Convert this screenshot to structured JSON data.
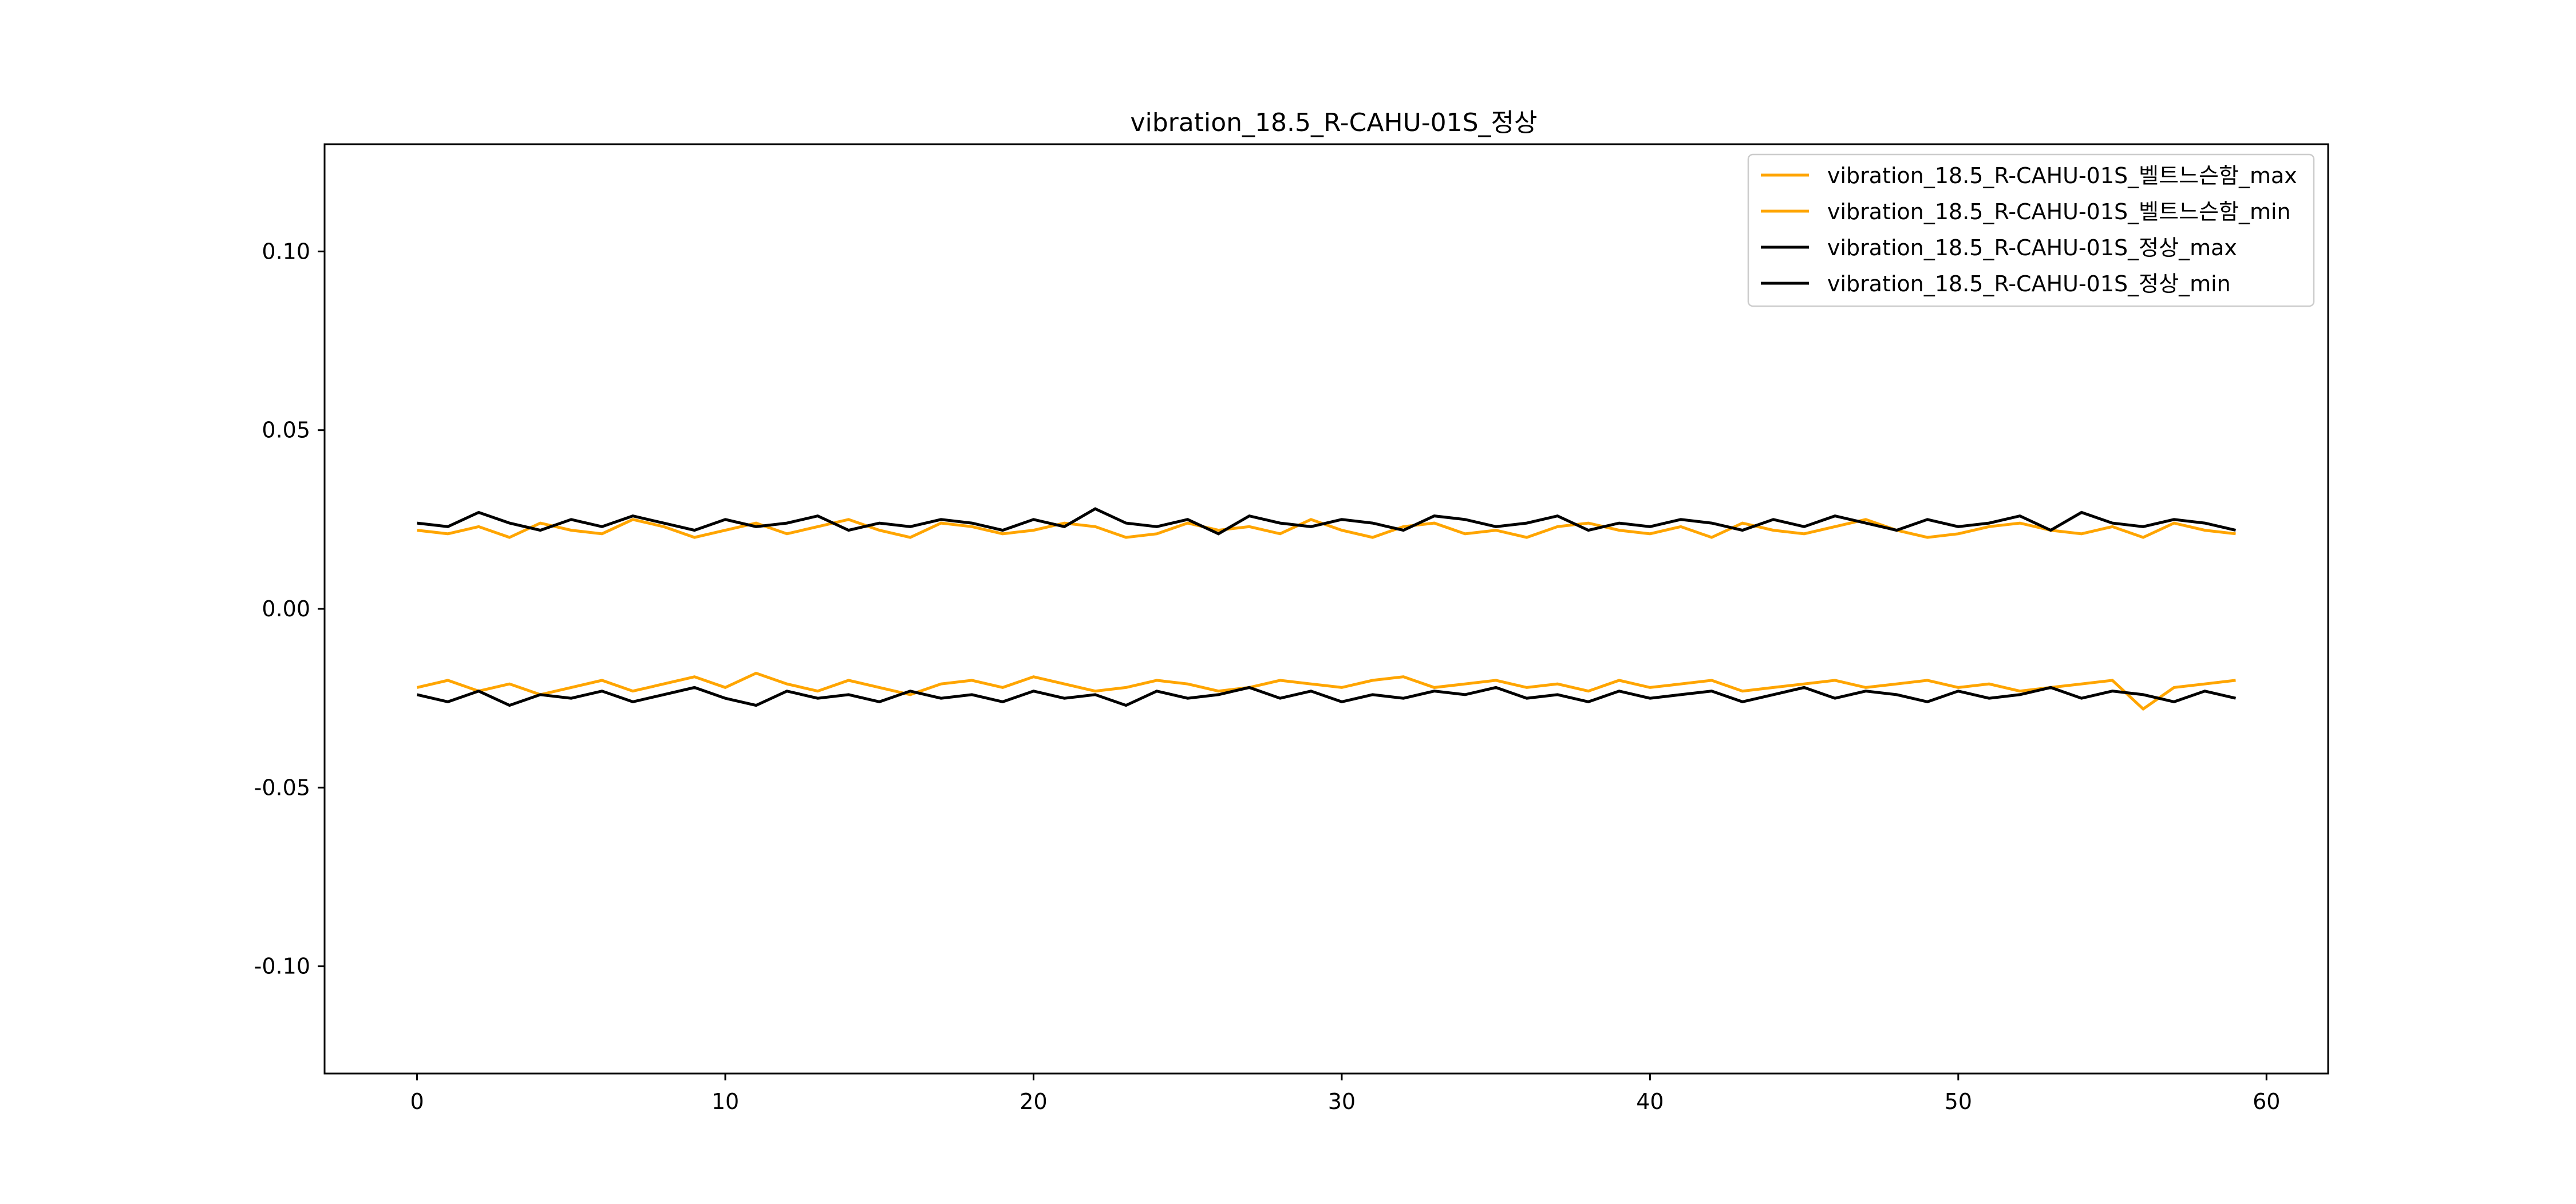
{
  "chart_data": {
    "type": "line",
    "title": "vibration_18.5_R-CAHU-01S_정상",
    "xlabel": "",
    "ylabel": "",
    "xlim": [
      -3,
      62
    ],
    "ylim": [
      -0.13,
      0.13
    ],
    "x_ticks": [
      0,
      10,
      20,
      30,
      40,
      50,
      60
    ],
    "x_tick_labels": [
      "0",
      "10",
      "20",
      "30",
      "40",
      "50",
      "60"
    ],
    "y_ticks": [
      0.1,
      0.05,
      0.0,
      -0.05,
      -0.1
    ],
    "y_tick_labels": [
      "0.10",
      "0.05",
      "0.00",
      "-0.05",
      "-0.10"
    ],
    "grid": false,
    "legend_position": "top-right",
    "x": [
      0,
      1,
      2,
      3,
      4,
      5,
      6,
      7,
      8,
      9,
      10,
      11,
      12,
      13,
      14,
      15,
      16,
      17,
      18,
      19,
      20,
      21,
      22,
      23,
      24,
      25,
      26,
      27,
      28,
      29,
      30,
      31,
      32,
      33,
      34,
      35,
      36,
      37,
      38,
      39,
      40,
      41,
      42,
      43,
      44,
      45,
      46,
      47,
      48,
      49,
      50,
      51,
      52,
      53,
      54,
      55,
      56,
      57,
      58,
      59
    ],
    "series": [
      {
        "name": "vibration_18.5_R-CAHU-01S_벨트느슨함_max",
        "color": "#ffa500",
        "values": [
          0.022,
          0.021,
          0.023,
          0.02,
          0.024,
          0.022,
          0.021,
          0.025,
          0.023,
          0.02,
          0.022,
          0.024,
          0.021,
          0.023,
          0.025,
          0.022,
          0.02,
          0.024,
          0.023,
          0.021,
          0.022,
          0.024,
          0.023,
          0.02,
          0.021,
          0.024,
          0.022,
          0.023,
          0.021,
          0.025,
          0.022,
          0.02,
          0.023,
          0.024,
          0.021,
          0.022,
          0.02,
          0.023,
          0.024,
          0.022,
          0.021,
          0.023,
          0.02,
          0.024,
          0.022,
          0.021,
          0.023,
          0.025,
          0.022,
          0.02,
          0.021,
          0.023,
          0.024,
          0.022,
          0.021,
          0.023,
          0.02,
          0.024,
          0.022,
          0.021
        ]
      },
      {
        "name": "vibration_18.5_R-CAHU-01S_벨트느슨함_min",
        "color": "#ffa500",
        "values": [
          -0.022,
          -0.02,
          -0.023,
          -0.021,
          -0.024,
          -0.022,
          -0.02,
          -0.023,
          -0.021,
          -0.019,
          -0.022,
          -0.018,
          -0.021,
          -0.023,
          -0.02,
          -0.022,
          -0.024,
          -0.021,
          -0.02,
          -0.022,
          -0.019,
          -0.021,
          -0.023,
          -0.022,
          -0.02,
          -0.021,
          -0.023,
          -0.022,
          -0.02,
          -0.021,
          -0.022,
          -0.02,
          -0.019,
          -0.022,
          -0.021,
          -0.02,
          -0.022,
          -0.021,
          -0.023,
          -0.02,
          -0.022,
          -0.021,
          -0.02,
          -0.023,
          -0.022,
          -0.021,
          -0.02,
          -0.022,
          -0.021,
          -0.02,
          -0.022,
          -0.021,
          -0.023,
          -0.022,
          -0.021,
          -0.02,
          -0.028,
          -0.022,
          -0.021,
          -0.02
        ]
      },
      {
        "name": "vibration_18.5_R-CAHU-01S_정상_max",
        "color": "#000000",
        "values": [
          0.024,
          0.023,
          0.027,
          0.024,
          0.022,
          0.025,
          0.023,
          0.026,
          0.024,
          0.022,
          0.025,
          0.023,
          0.024,
          0.026,
          0.022,
          0.024,
          0.023,
          0.025,
          0.024,
          0.022,
          0.025,
          0.023,
          0.028,
          0.024,
          0.023,
          0.025,
          0.021,
          0.026,
          0.024,
          0.023,
          0.025,
          0.024,
          0.022,
          0.026,
          0.025,
          0.023,
          0.024,
          0.026,
          0.022,
          0.024,
          0.023,
          0.025,
          0.024,
          0.022,
          0.025,
          0.023,
          0.026,
          0.024,
          0.022,
          0.025,
          0.023,
          0.024,
          0.026,
          0.022,
          0.027,
          0.024,
          0.023,
          0.025,
          0.024,
          0.022
        ]
      },
      {
        "name": "vibration_18.5_R-CAHU-01S_정상_min",
        "color": "#000000",
        "values": [
          -0.024,
          -0.026,
          -0.023,
          -0.027,
          -0.024,
          -0.025,
          -0.023,
          -0.026,
          -0.024,
          -0.022,
          -0.025,
          -0.027,
          -0.023,
          -0.025,
          -0.024,
          -0.026,
          -0.023,
          -0.025,
          -0.024,
          -0.026,
          -0.023,
          -0.025,
          -0.024,
          -0.027,
          -0.023,
          -0.025,
          -0.024,
          -0.022,
          -0.025,
          -0.023,
          -0.026,
          -0.024,
          -0.025,
          -0.023,
          -0.024,
          -0.022,
          -0.025,
          -0.024,
          -0.026,
          -0.023,
          -0.025,
          -0.024,
          -0.023,
          -0.026,
          -0.024,
          -0.022,
          -0.025,
          -0.023,
          -0.024,
          -0.026,
          -0.023,
          -0.025,
          -0.024,
          -0.022,
          -0.025,
          -0.023,
          -0.024,
          -0.026,
          -0.023,
          -0.025
        ]
      }
    ]
  }
}
